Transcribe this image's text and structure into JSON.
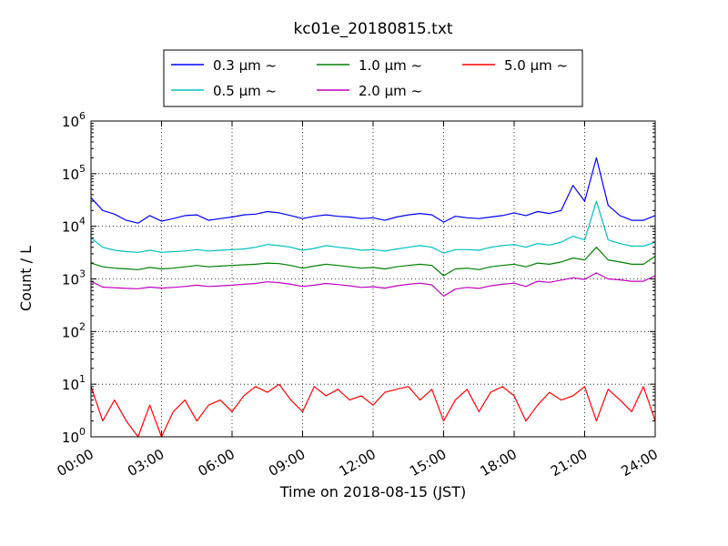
{
  "chart_data": {
    "type": "line",
    "title": "kc01e_20180815.txt",
    "xlabel": "Time on 2018-08-15 (JST)",
    "ylabel": "Count / L",
    "yscale": "log",
    "ylim": [
      1,
      1000000
    ],
    "xlim": [
      "00:00",
      "24:00"
    ],
    "grid": true,
    "legend_position": "top-center",
    "x_ticks": [
      "00:00",
      "03:00",
      "06:00",
      "09:00",
      "12:00",
      "15:00",
      "18:00",
      "21:00",
      "24:00"
    ],
    "y_ticks": [
      {
        "base": "10",
        "exp": "0",
        "value": 1
      },
      {
        "base": "10",
        "exp": "1",
        "value": 10
      },
      {
        "base": "10",
        "exp": "2",
        "value": 100
      },
      {
        "base": "10",
        "exp": "3",
        "value": 1000
      },
      {
        "base": "10",
        "exp": "4",
        "value": 10000
      },
      {
        "base": "10",
        "exp": "5",
        "value": 100000
      },
      {
        "base": "10",
        "exp": "6",
        "value": 1000000
      }
    ],
    "x": [
      "00:00",
      "00:30",
      "01:00",
      "01:30",
      "02:00",
      "02:30",
      "03:00",
      "03:30",
      "04:00",
      "04:30",
      "05:00",
      "05:30",
      "06:00",
      "06:30",
      "07:00",
      "07:30",
      "08:00",
      "08:30",
      "09:00",
      "09:30",
      "10:00",
      "10:30",
      "11:00",
      "11:30",
      "12:00",
      "12:30",
      "13:00",
      "13:30",
      "14:00",
      "14:30",
      "15:00",
      "15:30",
      "16:00",
      "16:30",
      "17:00",
      "17:30",
      "18:00",
      "18:30",
      "19:00",
      "19:30",
      "20:00",
      "20:30",
      "21:00",
      "21:30",
      "22:00",
      "22:30",
      "23:00",
      "23:30",
      "24:00"
    ],
    "series": [
      {
        "name": "0.3 μm ~",
        "color": "#0000ff",
        "values": [
          35000,
          20000,
          17000,
          13000,
          11500,
          16000,
          12500,
          14000,
          16000,
          16500,
          13000,
          14000,
          15000,
          16500,
          17000,
          19000,
          18000,
          16000,
          14000,
          15500,
          16500,
          15500,
          15000,
          14000,
          14500,
          13000,
          15000,
          16500,
          17500,
          16500,
          12000,
          15500,
          14500,
          14000,
          15000,
          16000,
          18000,
          16000,
          19000,
          17500,
          20000,
          60000,
          30000,
          200000,
          25000,
          16000,
          13000,
          13000,
          16000
        ]
      },
      {
        "name": "0.5 μm ~",
        "color": "#00bfbf",
        "values": [
          6000,
          4000,
          3500,
          3300,
          3200,
          3500,
          3200,
          3300,
          3400,
          3600,
          3400,
          3500,
          3600,
          3700,
          4000,
          4500,
          4300,
          4000,
          3500,
          3800,
          4300,
          4000,
          3800,
          3500,
          3600,
          3400,
          3700,
          4000,
          4300,
          4000,
          3100,
          3600,
          3600,
          3500,
          4000,
          4300,
          4500,
          4000,
          4700,
          4400,
          5000,
          6500,
          5500,
          30000,
          5500,
          4700,
          4200,
          4200,
          5000
        ]
      },
      {
        "name": "1.0 μm ~",
        "color": "#008000",
        "values": [
          2000,
          1700,
          1600,
          1550,
          1500,
          1650,
          1550,
          1600,
          1700,
          1800,
          1700,
          1750,
          1800,
          1850,
          1900,
          2000,
          1950,
          1800,
          1600,
          1750,
          1900,
          1800,
          1700,
          1600,
          1650,
          1550,
          1700,
          1800,
          1900,
          1800,
          1150,
          1550,
          1600,
          1500,
          1700,
          1800,
          1900,
          1700,
          2000,
          1900,
          2100,
          2500,
          2300,
          4000,
          2300,
          2100,
          1900,
          1900,
          2700
        ]
      },
      {
        "name": "2.0 μm ~",
        "color": "#bf00bf",
        "values": [
          900,
          700,
          680,
          660,
          650,
          700,
          670,
          690,
          720,
          760,
          720,
          740,
          760,
          790,
          820,
          880,
          850,
          790,
          720,
          760,
          820,
          780,
          740,
          690,
          710,
          670,
          740,
          790,
          830,
          770,
          470,
          640,
          690,
          660,
          740,
          790,
          830,
          720,
          900,
          860,
          950,
          1050,
          980,
          1300,
          1000,
          960,
          900,
          900,
          1150
        ]
      },
      {
        "name": "5.0 μm ~",
        "color": "#ff0000",
        "values": [
          9,
          2,
          5,
          2,
          1,
          4,
          1,
          3,
          5,
          2,
          4,
          5,
          3,
          6,
          9,
          7,
          10,
          5,
          3,
          9,
          6,
          8,
          5,
          6,
          4,
          7,
          8,
          9,
          5,
          8,
          2,
          5,
          8,
          3,
          7,
          9,
          6,
          2,
          4,
          7,
          5,
          6,
          9,
          2,
          8,
          5,
          3,
          9,
          2
        ]
      }
    ]
  }
}
